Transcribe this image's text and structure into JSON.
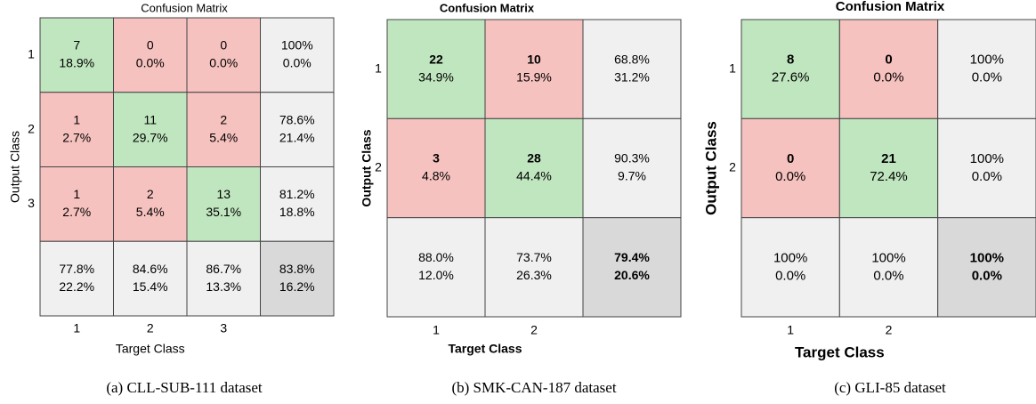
{
  "figures": [
    {
      "title": "Confusion Matrix",
      "x_label": "Target Class",
      "y_label": "Output Class",
      "x_ticks": [
        "1",
        "2",
        "3"
      ],
      "y_ticks": [
        "1",
        "2",
        "3"
      ],
      "cells": [
        [
          {
            "count": "7",
            "pct": "18.9%"
          },
          {
            "count": "0",
            "pct": "0.0%"
          },
          {
            "count": "0",
            "pct": "0.0%"
          }
        ],
        [
          {
            "count": "1",
            "pct": "2.7%"
          },
          {
            "count": "11",
            "pct": "29.7%"
          },
          {
            "count": "2",
            "pct": "5.4%"
          }
        ],
        [
          {
            "count": "1",
            "pct": "2.7%"
          },
          {
            "count": "2",
            "pct": "5.4%"
          },
          {
            "count": "13",
            "pct": "35.1%"
          }
        ]
      ],
      "row_summary": [
        {
          "correct": "100%",
          "wrong": "0.0%"
        },
        {
          "correct": "78.6%",
          "wrong": "21.4%"
        },
        {
          "correct": "81.2%",
          "wrong": "18.8%"
        }
      ],
      "col_summary": [
        {
          "correct": "77.8%",
          "wrong": "22.2%"
        },
        {
          "correct": "84.6%",
          "wrong": "15.4%"
        },
        {
          "correct": "86.7%",
          "wrong": "13.3%"
        }
      ],
      "total": {
        "correct": "83.8%",
        "wrong": "16.2%"
      },
      "caption": "(a) CLL-SUB-111 dataset"
    },
    {
      "title": "Confusion Matrix",
      "x_label": "Target Class",
      "y_label": "Output Class",
      "x_ticks": [
        "1",
        "2"
      ],
      "y_ticks": [
        "1",
        "2"
      ],
      "cells": [
        [
          {
            "count": "22",
            "pct": "34.9%"
          },
          {
            "count": "10",
            "pct": "15.9%"
          }
        ],
        [
          {
            "count": "3",
            "pct": "4.8%"
          },
          {
            "count": "28",
            "pct": "44.4%"
          }
        ]
      ],
      "row_summary": [
        {
          "correct": "68.8%",
          "wrong": "31.2%"
        },
        {
          "correct": "90.3%",
          "wrong": "9.7%"
        }
      ],
      "col_summary": [
        {
          "correct": "88.0%",
          "wrong": "12.0%"
        },
        {
          "correct": "73.7%",
          "wrong": "26.3%"
        }
      ],
      "total": {
        "correct": "79.4%",
        "wrong": "20.6%"
      },
      "caption": "(b) SMK-CAN-187 dataset"
    },
    {
      "title": "Confusion Matrix",
      "x_label": "Target Class",
      "y_label": "Output Class",
      "x_ticks": [
        "1",
        "2"
      ],
      "y_ticks": [
        "1",
        "2"
      ],
      "cells": [
        [
          {
            "count": "8",
            "pct": "27.6%"
          },
          {
            "count": "0",
            "pct": "0.0%"
          }
        ],
        [
          {
            "count": "0",
            "pct": "0.0%"
          },
          {
            "count": "21",
            "pct": "72.4%"
          }
        ]
      ],
      "row_summary": [
        {
          "correct": "100%",
          "wrong": "0.0%"
        },
        {
          "correct": "100%",
          "wrong": "0.0%"
        }
      ],
      "col_summary": [
        {
          "correct": "100%",
          "wrong": "0.0%"
        },
        {
          "correct": "100%",
          "wrong": "0.0%"
        }
      ],
      "total": {
        "correct": "100%",
        "wrong": "0.0%"
      },
      "caption": "(c) GLI-85 dataset"
    }
  ]
}
